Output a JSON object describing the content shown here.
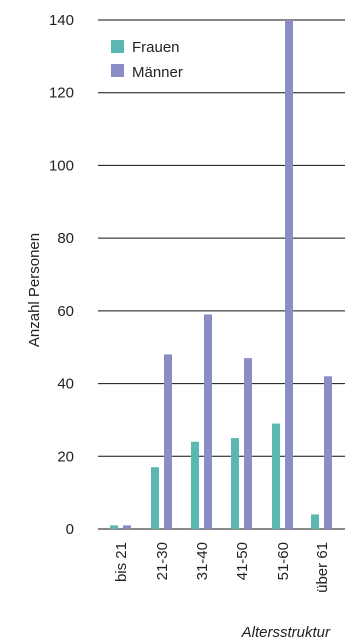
{
  "chart_data": {
    "type": "bar",
    "categories": [
      "bis 21",
      "21-30",
      "31-40",
      "41-50",
      "51-60",
      "über 61"
    ],
    "series": [
      {
        "name": "Frauen",
        "values": [
          1,
          17,
          24,
          25,
          29,
          4
        ],
        "color": "#5bb8b0"
      },
      {
        "name": "Männer",
        "values": [
          1,
          48,
          59,
          47,
          140,
          42
        ],
        "color": "#8b8dc6"
      }
    ],
    "title": "",
    "xlabel": "Altersstruktur",
    "ylabel": "Anzahl Personen",
    "ylim": [
      0,
      140
    ],
    "yticks": [
      0,
      20,
      40,
      60,
      80,
      100,
      120,
      140
    ],
    "grid": true,
    "legend_position": "top-left"
  }
}
